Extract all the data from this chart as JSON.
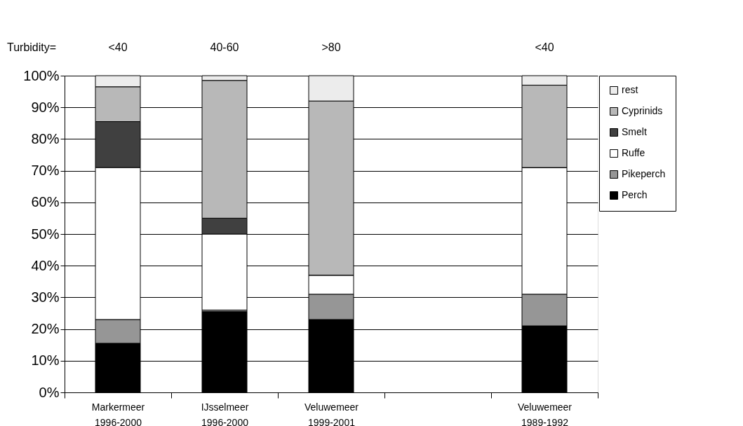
{
  "chart_data": {
    "type": "bar",
    "stacked": true,
    "categories": [
      "Markermeer\n1996-2000",
      "IJsselmeer\n1996-2000",
      "Veluwemeer\n1999-2001",
      null,
      "Veluwemeer\n1989-1992"
    ],
    "series": [
      {
        "name": "Perch",
        "color": "#000000",
        "values": [
          15.5,
          25.5,
          23,
          null,
          21
        ]
      },
      {
        "name": "Pikeperch",
        "color": "#969696",
        "values": [
          7.5,
          0.5,
          8,
          null,
          10
        ]
      },
      {
        "name": "Ruffe",
        "color": "#ffffff",
        "values": [
          48,
          24,
          6,
          null,
          40
        ]
      },
      {
        "name": "Smelt",
        "color": "#404040",
        "values": [
          14.5,
          5,
          0,
          null,
          0
        ]
      },
      {
        "name": "Cyprinids",
        "color": "#b8b8b8",
        "values": [
          11,
          43.5,
          55,
          null,
          26
        ]
      },
      {
        "name": "rest",
        "color": "#ececec",
        "values": [
          3.5,
          1.5,
          8,
          null,
          3
        ]
      }
    ],
    "ylim": [
      0,
      100
    ],
    "yticks": [
      {
        "value": 0,
        "label": "0%"
      },
      {
        "value": 10,
        "label": "10%"
      },
      {
        "value": 20,
        "label": "20%"
      },
      {
        "value": 30,
        "label": "30%"
      },
      {
        "value": 40,
        "label": "40%"
      },
      {
        "value": 50,
        "label": "50%"
      },
      {
        "value": 60,
        "label": "60%"
      },
      {
        "value": 70,
        "label": "70%"
      },
      {
        "value": 80,
        "label": "80%"
      },
      {
        "value": 90,
        "label": "90%"
      },
      {
        "value": 100,
        "label": "100%"
      }
    ],
    "grid": "y",
    "legend": "right",
    "annotations": [
      "Turbidity=",
      "<40",
      "40-60",
      ">80",
      "<40"
    ]
  }
}
